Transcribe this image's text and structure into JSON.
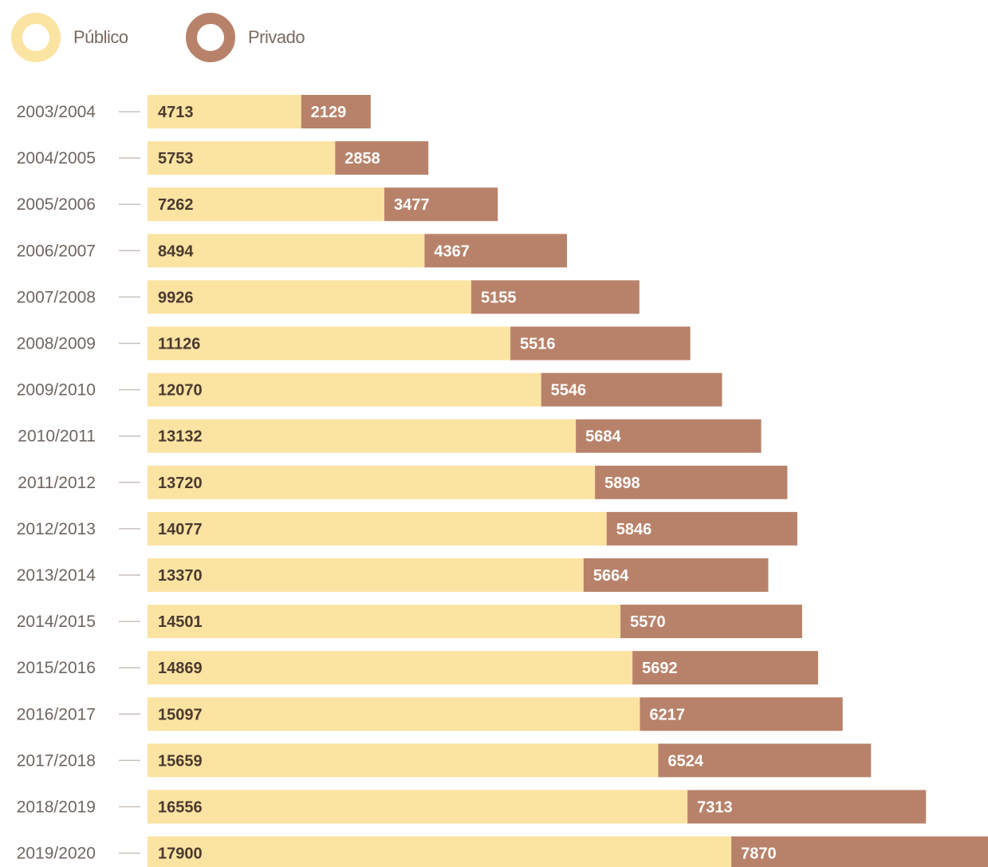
{
  "legend": {
    "publico": {
      "label": "Público",
      "color": "#fbe3a2"
    },
    "privado": {
      "label": "Privado",
      "color": "#b8826a"
    }
  },
  "chart_data": {
    "type": "bar",
    "orientation": "horizontal",
    "stacked": true,
    "title": "",
    "xlabel": "",
    "ylabel": "",
    "categories": [
      "2003/2004",
      "2004/2005",
      "2005/2006",
      "2006/2007",
      "2007/2008",
      "2008/2009",
      "2009/2010",
      "2010/2011",
      "2011/2012",
      "2012/2013",
      "2013/2014",
      "2014/2015",
      "2015/2016",
      "2016/2017",
      "2017/2018",
      "2018/2019",
      "2019/2020"
    ],
    "series": [
      {
        "name": "Público",
        "color": "#fbe3a2",
        "label_color": "#4b3a2f",
        "values": [
          4713,
          5753,
          7262,
          8494,
          9926,
          11126,
          12070,
          13132,
          13720,
          14077,
          13370,
          14501,
          14869,
          15097,
          15659,
          16556,
          17900
        ]
      },
      {
        "name": "Privado",
        "color": "#b8826a",
        "label_color": "#ffffff",
        "values": [
          2129,
          2858,
          3477,
          4367,
          5155,
          5516,
          5546,
          5684,
          5898,
          5846,
          5664,
          5570,
          5692,
          6217,
          6524,
          7313,
          7870
        ]
      }
    ],
    "grid": false,
    "legend_position": "top-left"
  }
}
